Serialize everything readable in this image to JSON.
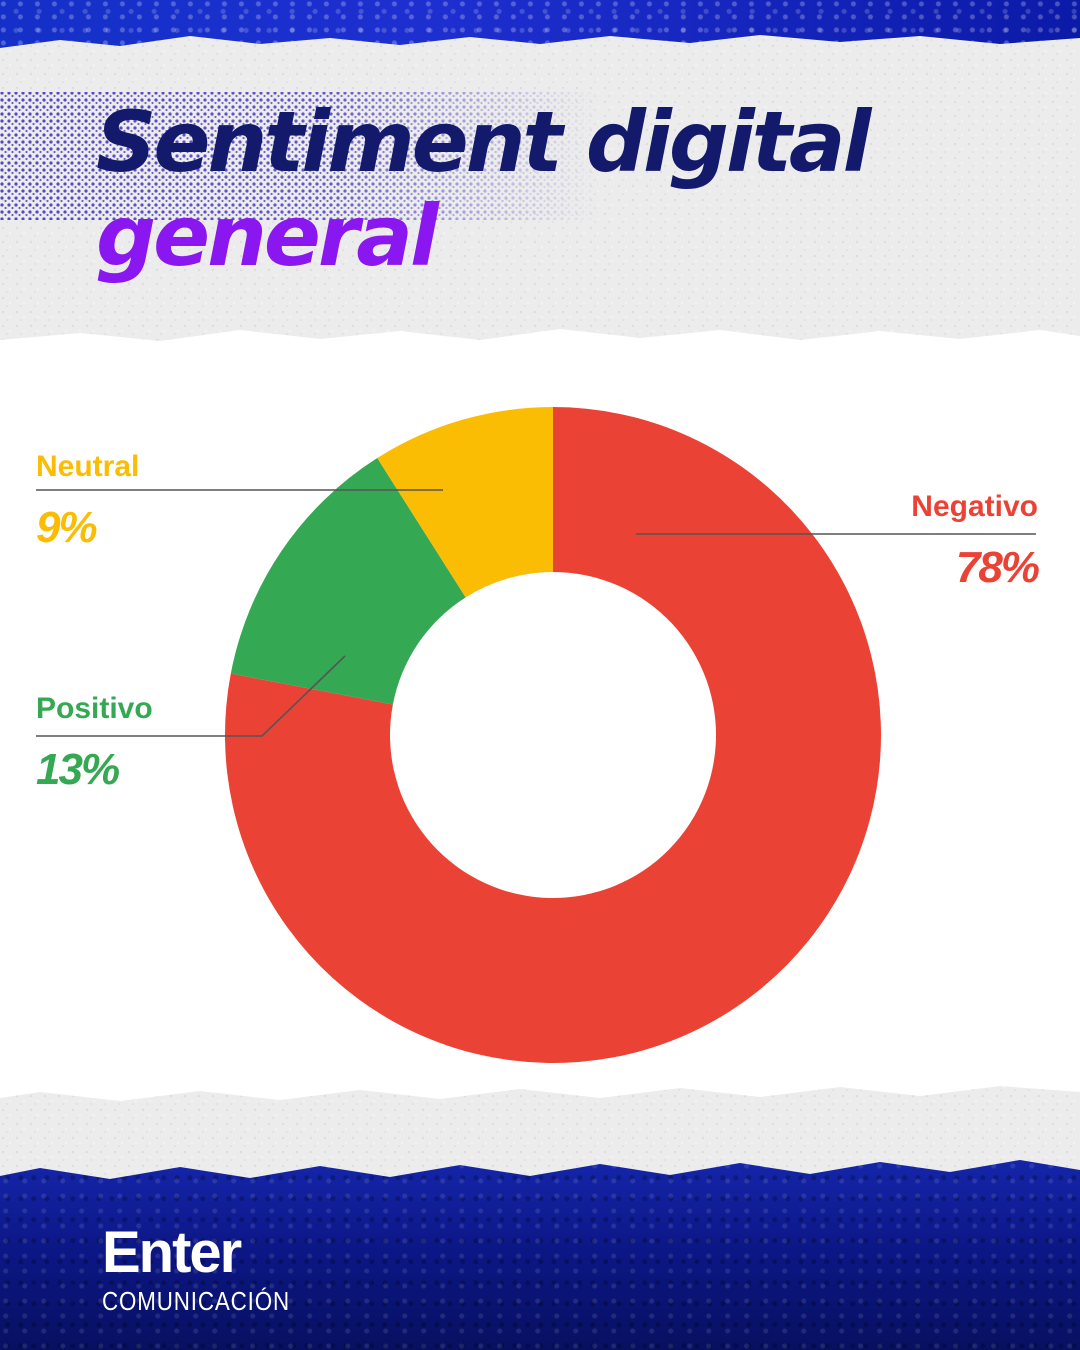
{
  "title": {
    "line1": "Sentiment digital",
    "line2": "general"
  },
  "colors": {
    "title_dark": "#141a6b",
    "title_accent": "#8a16f0",
    "negativo": "#ea4335",
    "positivo": "#34a853",
    "neutral": "#fbbc04",
    "background_blue": "#1a2fc2"
  },
  "chart_data": {
    "type": "pie",
    "variant": "donut",
    "categories": [
      "Negativo",
      "Positivo",
      "Neutral"
    ],
    "values": [
      78,
      13,
      9
    ],
    "value_labels": [
      "78%",
      "13%",
      "9%"
    ],
    "colors": [
      "#ea4335",
      "#34a853",
      "#fbbc04"
    ],
    "start_angle": "top, clockwise"
  },
  "brand": {
    "name": "Enter",
    "tagline": "COMUNICACIÓN"
  }
}
